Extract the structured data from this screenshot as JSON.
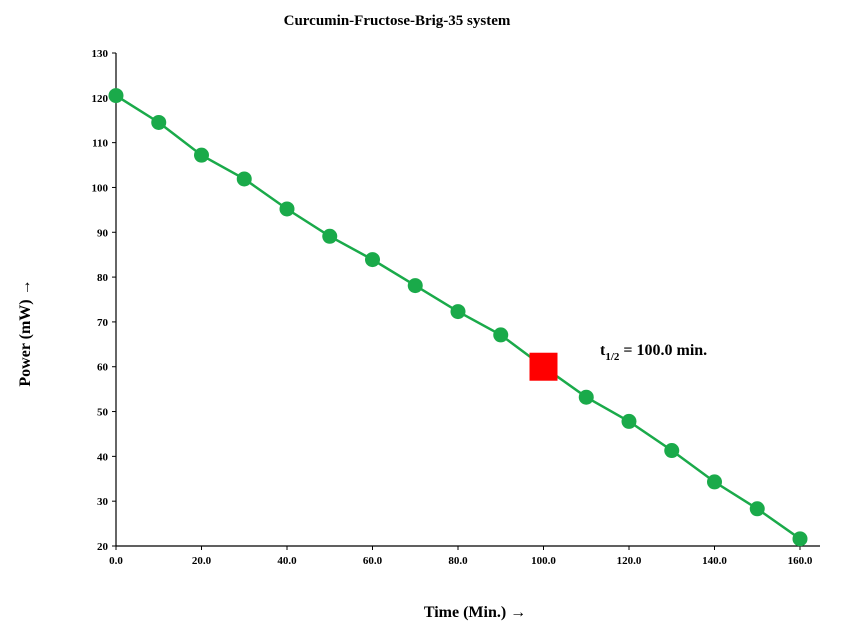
{
  "chart_data": {
    "type": "line",
    "title": "Curcumin-Fructose-Brig-35 system",
    "xlabel": "Time (Min.) →",
    "ylabel": "Power (mW) →",
    "xlim": [
      0,
      160
    ],
    "ylim": [
      20,
      130
    ],
    "x_ticks": [
      "0.0",
      "20.0",
      "40.0",
      "60.0",
      "80.0",
      "100.0",
      "120.0",
      "140.0",
      "160.0"
    ],
    "y_ticks": [
      "20",
      "30",
      "40",
      "50",
      "60",
      "70",
      "80",
      "90",
      "100",
      "110",
      "120",
      "130"
    ],
    "grid": false,
    "legend": "none",
    "series": [
      {
        "color": "#1aaa4a",
        "marker": "circle",
        "x": [
          0,
          10,
          20,
          30,
          40,
          50,
          60,
          70,
          80,
          90,
          100,
          110,
          120,
          130,
          140,
          150,
          160
        ],
        "y": [
          120.5,
          114.5,
          107.2,
          101.9,
          95.2,
          89.1,
          83.9,
          78.1,
          72.3,
          67.1,
          60.0,
          53.2,
          47.8,
          41.3,
          34.3,
          28.3,
          21.6
        ]
      }
    ],
    "highlight": {
      "x": 100,
      "y": 60,
      "color": "#ff0000",
      "marker": "square"
    },
    "annotation": {
      "main": "t",
      "sub": "1/2",
      "rest": " = 100.0 min."
    }
  }
}
